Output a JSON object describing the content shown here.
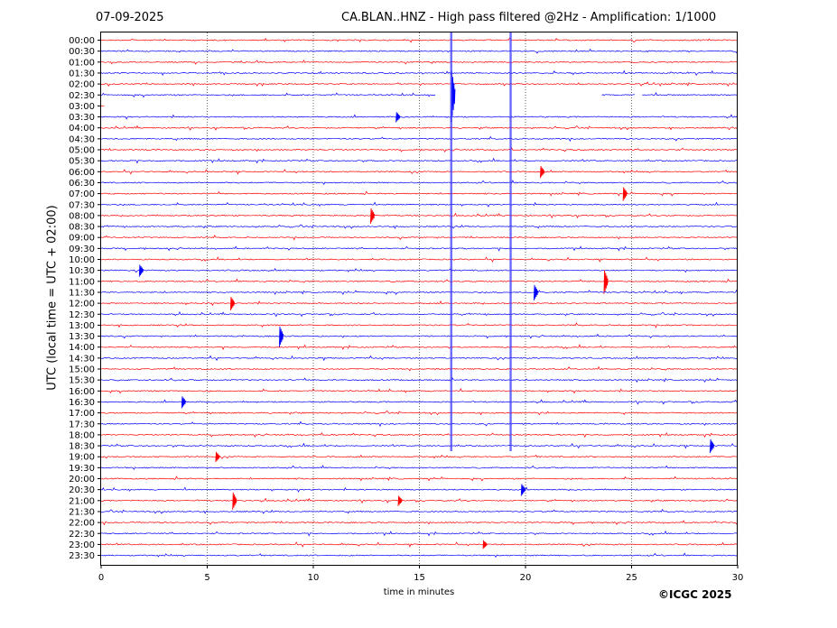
{
  "header": {
    "date": "07-09-2025",
    "title": "CA.BLAN..HNZ - High pass filtered @2Hz - Amplification: 1/1000"
  },
  "footer": {
    "copyright": "©ICGC 2025"
  },
  "chart_data": {
    "type": "line",
    "title": "CA.BLAN..HNZ - High pass filtered @2Hz - Amplification: 1/1000",
    "xlabel": "time in minutes",
    "ylabel": "UTC (local time = UTC + 02:00)",
    "xlim": [
      0,
      30
    ],
    "x_ticks": [
      "0",
      "5",
      "10",
      "15",
      "20",
      "25",
      "30"
    ],
    "y_ticks": [
      "00:00",
      "00:30",
      "01:00",
      "01:30",
      "02:00",
      "02:30",
      "03:00",
      "03:30",
      "04:00",
      "04:30",
      "05:00",
      "05:30",
      "06:00",
      "06:30",
      "07:00",
      "07:30",
      "08:00",
      "08:30",
      "09:00",
      "09:30",
      "10:00",
      "10:30",
      "11:00",
      "11:30",
      "12:00",
      "12:30",
      "13:00",
      "13:30",
      "14:00",
      "14:30",
      "15:00",
      "15:30",
      "16:00",
      "16:30",
      "17:00",
      "17:30",
      "18:00",
      "18:30",
      "19:00",
      "19:30",
      "20:00",
      "20:30",
      "21:00",
      "21:30",
      "22:00",
      "22:30",
      "23:00",
      "23:30"
    ],
    "trace_colors": [
      "#ff0000",
      "#0000ff"
    ],
    "grid": "vertical dotted at every 5 minutes",
    "data_gaps": [
      {
        "row": "02:30",
        "from_min": 15.8,
        "to_min": 23.6
      },
      {
        "row": "02:30",
        "from_min": 25.2,
        "to_min": 25.5
      },
      {
        "row": "03:00",
        "from_min": 0.2,
        "to_min": 30
      }
    ],
    "vertical_spikes_min": [
      16.5,
      19.3
    ],
    "events": [
      {
        "row": "02:30",
        "min": 16.5,
        "amp": 3
      },
      {
        "row": "03:30",
        "min": 13.9,
        "amp": 0.6
      },
      {
        "row": "08:00",
        "min": 12.7,
        "amp": 0.9
      },
      {
        "row": "10:30",
        "min": 1.8,
        "amp": 0.7
      },
      {
        "row": "11:00",
        "min": 23.7,
        "amp": 1.4
      },
      {
        "row": "11:30",
        "min": 20.4,
        "amp": 0.9
      },
      {
        "row": "12:00",
        "min": 6.1,
        "amp": 0.8
      },
      {
        "row": "13:30",
        "min": 8.4,
        "amp": 1.2
      },
      {
        "row": "16:30",
        "min": 3.8,
        "amp": 0.7
      },
      {
        "row": "18:30",
        "min": 28.7,
        "amp": 0.8
      },
      {
        "row": "19:00",
        "min": 5.4,
        "amp": 0.6
      },
      {
        "row": "20:30",
        "min": 19.8,
        "amp": 0.7
      },
      {
        "row": "21:00",
        "min": 6.2,
        "amp": 1.0
      },
      {
        "row": "21:00",
        "min": 14.0,
        "amp": 0.6
      },
      {
        "row": "23:00",
        "min": 18.0,
        "amp": 0.5
      },
      {
        "row": "06:00",
        "min": 20.7,
        "amp": 0.7
      },
      {
        "row": "07:00",
        "min": 24.6,
        "amp": 0.8
      }
    ]
  }
}
